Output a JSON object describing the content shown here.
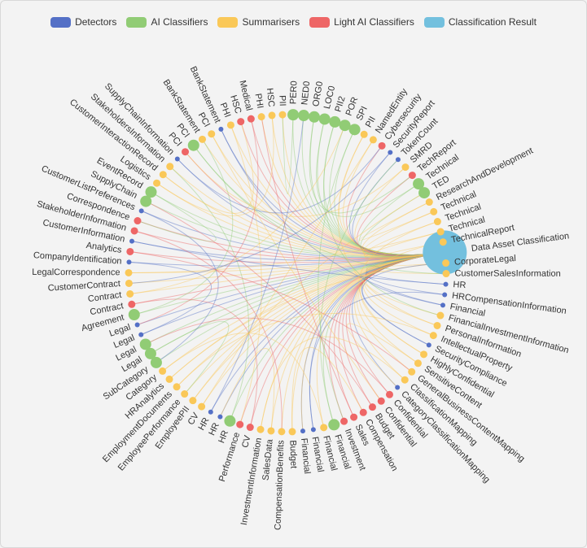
{
  "legend": [
    {
      "label": "Detectors",
      "color": "#5470c6"
    },
    {
      "label": "AI Classifiers",
      "color": "#91cc75"
    },
    {
      "label": "Summarisers",
      "color": "#fac858"
    },
    {
      "label": "Light AI Classifiers",
      "color": "#ee6666"
    },
    {
      "label": "Classification Result",
      "color": "#73c0de"
    }
  ],
  "nodes": [
    {
      "label": "Data Asset Classification",
      "category": 4
    },
    {
      "label": "CorporateLegal",
      "category": 2
    },
    {
      "label": "CustomerSalesInformation",
      "category": 2
    },
    {
      "label": "HR",
      "category": 0
    },
    {
      "label": "HRCompensationInformation",
      "category": 0
    },
    {
      "label": "Financial",
      "category": 0
    },
    {
      "label": "FinancialInvestmentInformation",
      "category": 2
    },
    {
      "label": "PersonalInformation",
      "category": 2
    },
    {
      "label": "IntellectualProperty",
      "category": 2
    },
    {
      "label": "SecurityCompliance",
      "category": 0
    },
    {
      "label": "HighlyConfidential",
      "category": 2
    },
    {
      "label": "SensitiveContent",
      "category": 2
    },
    {
      "label": "GeneralBusinessContentMapping",
      "category": 2
    },
    {
      "label": "ClassificationMapping",
      "category": 2
    },
    {
      "label": "CategoryClassificationMapping",
      "category": 0
    },
    {
      "label": "Confidential",
      "category": 3
    },
    {
      "label": "Confidential",
      "category": 3
    },
    {
      "label": "Budget",
      "category": 3
    },
    {
      "label": "Compensation",
      "category": 3
    },
    {
      "label": "Sales",
      "category": 3
    },
    {
      "label": "Investment",
      "category": 3
    },
    {
      "label": "Financial",
      "category": 1
    },
    {
      "label": "Financial",
      "category": 2
    },
    {
      "label": "Financial",
      "category": 0
    },
    {
      "label": "Financial",
      "category": 0
    },
    {
      "label": "Budget",
      "category": 2
    },
    {
      "label": "CompensationBenefits",
      "category": 2
    },
    {
      "label": "SalesData",
      "category": 2
    },
    {
      "label": "InvestmentInformation",
      "category": 2
    },
    {
      "label": "CV",
      "category": 3
    },
    {
      "label": "Performance",
      "category": 3
    },
    {
      "label": "HR",
      "category": 1
    },
    {
      "label": "HR",
      "category": 0
    },
    {
      "label": "HR",
      "category": 0
    },
    {
      "label": "CV",
      "category": 2
    },
    {
      "label": "EmployeePII",
      "category": 2
    },
    {
      "label": "EmployeePerformance",
      "category": 2
    },
    {
      "label": "EmploymentDocuments",
      "category": 2
    },
    {
      "label": "HRAnalytics",
      "category": 2
    },
    {
      "label": "Category",
      "category": 2
    },
    {
      "label": "SubCategory",
      "category": 1
    },
    {
      "label": "Legal",
      "category": 1
    },
    {
      "label": "Legal",
      "category": 1
    },
    {
      "label": "Legal",
      "category": 0
    },
    {
      "label": "Legal",
      "category": 0
    },
    {
      "label": "Agreement",
      "category": 1
    },
    {
      "label": "Contract",
      "category": 3
    },
    {
      "label": "Contract",
      "category": 2
    },
    {
      "label": "CustomerContract",
      "category": 2
    },
    {
      "label": "LegalCorrespondence",
      "category": 2
    },
    {
      "label": "CompanyIdentification",
      "category": 0
    },
    {
      "label": "Analytics",
      "category": 3
    },
    {
      "label": "CustomerInformation",
      "category": 0
    },
    {
      "label": "StakeholderInformation",
      "category": 3
    },
    {
      "label": "Correspondence",
      "category": 3
    },
    {
      "label": "CustomerListPreferences",
      "category": 0
    },
    {
      "label": "SupplyChain",
      "category": 1
    },
    {
      "label": "EventRecord",
      "category": 1
    },
    {
      "label": "Logistics",
      "category": 2
    },
    {
      "label": "CustomerInteractionRecord",
      "category": 2
    },
    {
      "label": "StakeholdersInformation",
      "category": 2
    },
    {
      "label": "SupplyChainInformation",
      "category": 0
    },
    {
      "label": "PCI",
      "category": 3
    },
    {
      "label": "PCI",
      "category": 1
    },
    {
      "label": "BankStatement",
      "category": 2
    },
    {
      "label": "PCI",
      "category": 2
    },
    {
      "label": "BankStatement",
      "category": 0
    },
    {
      "label": "PHI",
      "category": 2
    },
    {
      "label": "HSC",
      "category": 3
    },
    {
      "label": "Medical",
      "category": 3
    },
    {
      "label": "PHI",
      "category": 2
    },
    {
      "label": "HSC",
      "category": 2
    },
    {
      "label": "PII",
      "category": 2
    },
    {
      "label": "PER0",
      "category": 1
    },
    {
      "label": "NED0",
      "category": 1
    },
    {
      "label": "ORG0",
      "category": 1
    },
    {
      "label": "LOC0",
      "category": 1
    },
    {
      "label": "PII2",
      "category": 1
    },
    {
      "label": "POR",
      "category": 1
    },
    {
      "label": "SPI",
      "category": 1
    },
    {
      "label": "PII",
      "category": 2
    },
    {
      "label": "NamedEntity",
      "category": 2
    },
    {
      "label": "Cybersecurity",
      "category": 3
    },
    {
      "label": "SecurityReport",
      "category": 0
    },
    {
      "label": "TokenCount",
      "category": 0
    },
    {
      "label": "SMRD",
      "category": 2
    },
    {
      "label": "TechReport",
      "category": 3
    },
    {
      "label": "Technical",
      "category": 1
    },
    {
      "label": "TED",
      "category": 1
    },
    {
      "label": "ResearchAndDevelopment",
      "category": 2
    },
    {
      "label": "Technical",
      "category": 2
    },
    {
      "label": "Technical",
      "category": 2
    },
    {
      "label": "Technical",
      "category": 2
    },
    {
      "label": "TechnicalReport",
      "category": 2
    }
  ]
}
